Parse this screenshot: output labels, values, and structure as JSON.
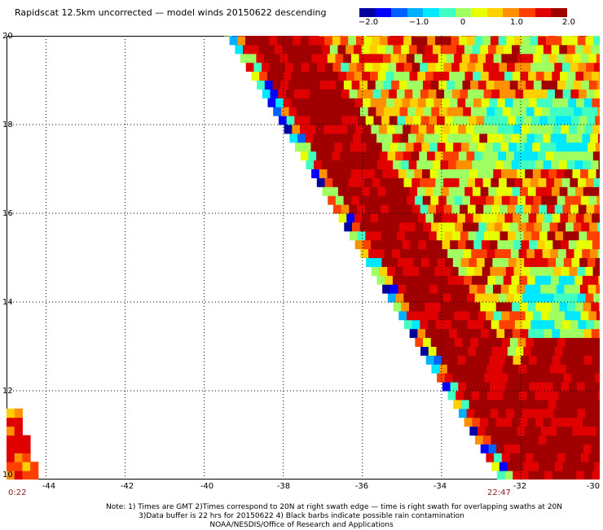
{
  "title": "Rapidscat 12.5km uncorrected — model winds 20150622 descending",
  "colorbar": {
    "tick_labels": [
      "−2.0",
      "−1.0",
      "0",
      "1.0",
      "2.0"
    ],
    "tick_values": [
      -2.0,
      -1.0,
      0,
      1.0,
      2.0
    ],
    "range": [
      -2.0,
      2.0
    ],
    "colors": [
      "#0000a0",
      "#0000ff",
      "#0060ff",
      "#00b0ff",
      "#00e8ff",
      "#40ffc0",
      "#a0ff60",
      "#e8ff00",
      "#ffd000",
      "#ff9000",
      "#ff4000",
      "#e00000",
      "#a00000"
    ]
  },
  "axes": {
    "lon_range": [
      -45,
      -30
    ],
    "lat_range": [
      10,
      20
    ],
    "lon_ticks": [
      "-44",
      "-42",
      "-40",
      "-38",
      "-36",
      "-34",
      "-32",
      "-30"
    ],
    "lat_ticks": [
      "20",
      "18",
      "16",
      "14",
      "12",
      "10"
    ],
    "grid": "dotted"
  },
  "times": {
    "left": "0:22",
    "right": "22:47"
  },
  "notes": {
    "line1": "Note: 1) Times are GMT 2)Times correspond to 20N at right swath edge — time is right swath for overlapping swaths at 20N",
    "line2": "3)Data buffer is 22 hrs for 20150622 4) Black barbs indicate possible rain contamination",
    "line3": "NOAA/NESDIS/Office of Research and Applications"
  }
}
